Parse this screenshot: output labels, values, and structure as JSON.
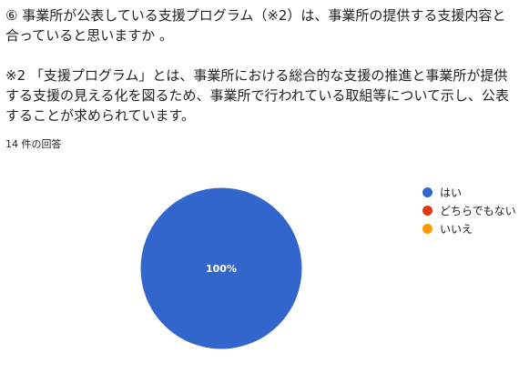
{
  "question": {
    "title": "⑥ 事業所が公表している支援プログラム（※2）は、事業所の提供する支援内容と合っていると思いますか 。",
    "note": "※2 「支援プログラム」とは、事業所における総合的な支援の推進と事業所が提供する支援の見える化を図るため、事業所で行われている取組等について示し、公表することが求められています。"
  },
  "response_count": "14 件の回答",
  "chart_data": {
    "type": "pie",
    "categories": [
      "はい",
      "どちらでもない",
      "いいえ"
    ],
    "values": [
      14,
      0,
      0
    ],
    "colors": [
      "#3366cc",
      "#dc3912",
      "#ff9900"
    ],
    "data_labels": [
      "100%",
      "",
      ""
    ],
    "legend_position": "right"
  }
}
